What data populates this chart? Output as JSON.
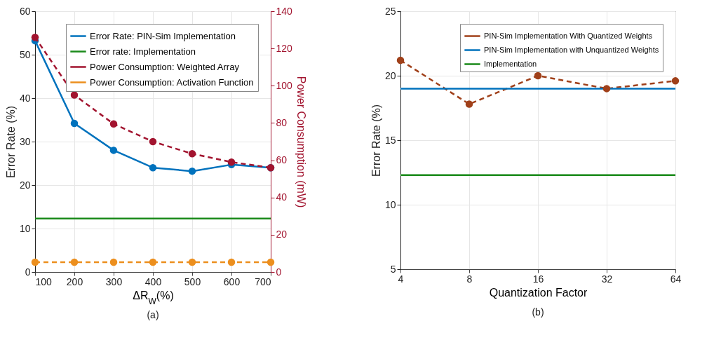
{
  "chart_data": [
    {
      "type": "line",
      "annotations": [
        "(a)"
      ],
      "xlabel": "ΔR$_{W}$(%)",
      "ylabel": "Error Rate (%)",
      "y2label": "Power Consumption (mW)",
      "x": [
        100,
        200,
        300,
        400,
        500,
        600,
        700
      ],
      "xlim": [
        100,
        700
      ],
      "xticks": [
        100,
        200,
        300,
        400,
        500,
        600,
        700
      ],
      "ylim": [
        0,
        60
      ],
      "yticks": [
        0,
        10,
        20,
        30,
        40,
        50,
        60
      ],
      "y2lim": [
        0,
        140
      ],
      "y2ticks": [
        0,
        20,
        40,
        60,
        80,
        100,
        120,
        140
      ],
      "grid": true,
      "legend": "top right",
      "series": [
        {
          "name": "Error Rate: PIN-Sim Implementation",
          "color": "#0072bd",
          "marker": "circle",
          "line_style": "solid",
          "values": [
            53.2,
            34.2,
            28,
            24,
            23.2,
            24.7,
            24
          ]
        },
        {
          "name": "Error rate: Implementation",
          "color": "#1a8a1a",
          "marker": "none",
          "line_style": "solid",
          "values": [
            12.3,
            12.3,
            12.3,
            12.3,
            12.3,
            12.3,
            12.3
          ]
        },
        {
          "name": "Power Consumption: Weighted Array",
          "color": "#a2142f",
          "marker": "circle",
          "line_style": "dashed",
          "axis": "y2",
          "values": [
            126,
            95,
            79.5,
            70,
            63.5,
            59,
            56
          ]
        },
        {
          "name": "Power Consumption: Activation Function",
          "color": "#ec8f1e",
          "marker": "circle",
          "line_style": "dashed",
          "axis": "y2",
          "values": [
            5.3,
            5.3,
            5.3,
            5.3,
            5.3,
            5.3,
            5.3
          ]
        }
      ]
    },
    {
      "type": "line",
      "annotations": [
        "(b)"
      ],
      "xlabel": "Quantization Factor",
      "ylabel": "Error Rate (%)",
      "categories": [
        "4",
        "8",
        "16",
        "32",
        "64"
      ],
      "ylim": [
        5,
        25
      ],
      "yticks": [
        5,
        10,
        15,
        20,
        25
      ],
      "grid": true,
      "legend": "top right",
      "series": [
        {
          "name": "PIN-Sim Implementation With Quantized Weights",
          "color": "#a0401a",
          "marker": "circle",
          "line_style": "dashed",
          "values": [
            21.2,
            17.8,
            20,
            19,
            19.6
          ]
        },
        {
          "name": "PIN-Sim Implementation with Unquantized Weights",
          "color": "#0072bd",
          "marker": "none",
          "line_style": "solid",
          "values": [
            19,
            19,
            19,
            19,
            19
          ]
        },
        {
          "name": "Implementation",
          "color": "#1a8a1a",
          "marker": "none",
          "line_style": "solid",
          "values": [
            12.3,
            12.3,
            12.3,
            12.3,
            12.3
          ]
        }
      ]
    }
  ]
}
